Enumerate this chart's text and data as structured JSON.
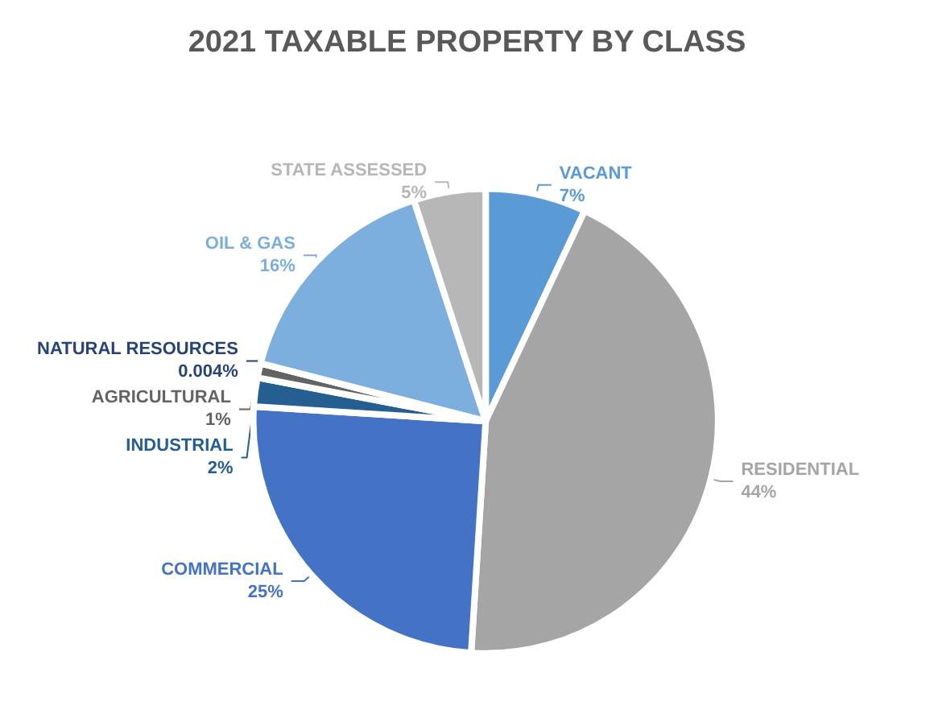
{
  "chart_data": {
    "type": "pie",
    "title": "2021 TAXABLE PROPERTY BY CLASS",
    "categories": [
      "VACANT",
      "RESIDENTIAL",
      "COMMERCIAL",
      "INDUSTRIAL",
      "AGRICULTURAL",
      "NATURAL RESOURCES",
      "OIL & GAS",
      "STATE ASSESSED"
    ],
    "values": [
      7,
      44,
      25,
      2,
      1,
      0.004,
      16,
      5
    ],
    "value_labels": [
      "7%",
      "44%",
      "25%",
      "2%",
      "1%",
      "0.004%",
      "16%",
      "5%"
    ],
    "colors": [
      "#5b9bd5",
      "#a5a5a5",
      "#4472c4",
      "#255e91",
      "#636363",
      "#264478",
      "#7cafdd",
      "#b7b7b7"
    ],
    "legend": false
  }
}
